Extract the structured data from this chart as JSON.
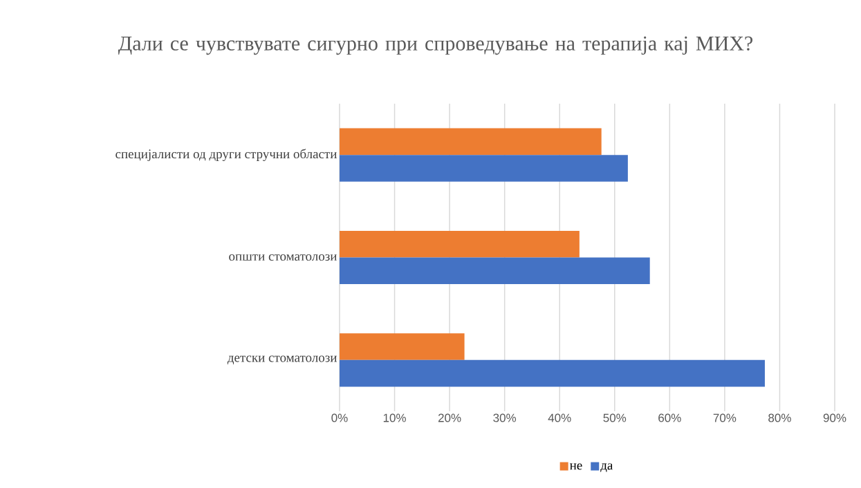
{
  "chart_data": {
    "type": "bar",
    "orientation": "horizontal",
    "title": "Дали се чувствувате сигурно при спроведување на терапија кај МИХ?",
    "categories": [
      "специјалисти од други стручни области",
      "општи стоматолози",
      "детски стоматолози"
    ],
    "series": [
      {
        "name": "не",
        "color": "#ed7d31",
        "values": [
          47.6,
          43.6,
          22.7
        ]
      },
      {
        "name": "да",
        "color": "#4472c4",
        "values": [
          52.4,
          56.4,
          77.3
        ]
      }
    ],
    "xlim": [
      0,
      90
    ],
    "xticks": [
      {
        "value": 0,
        "label": "0%"
      },
      {
        "value": 10,
        "label": "10%"
      },
      {
        "value": 20,
        "label": "20%"
      },
      {
        "value": 30,
        "label": "30%"
      },
      {
        "value": 40,
        "label": "40%"
      },
      {
        "value": 50,
        "label": "50%"
      },
      {
        "value": 60,
        "label": "60%"
      },
      {
        "value": 70,
        "label": "70%"
      },
      {
        "value": 80,
        "label": "80%"
      },
      {
        "value": 90,
        "label": "90%"
      }
    ],
    "grid": "x",
    "legend": "bottom"
  }
}
